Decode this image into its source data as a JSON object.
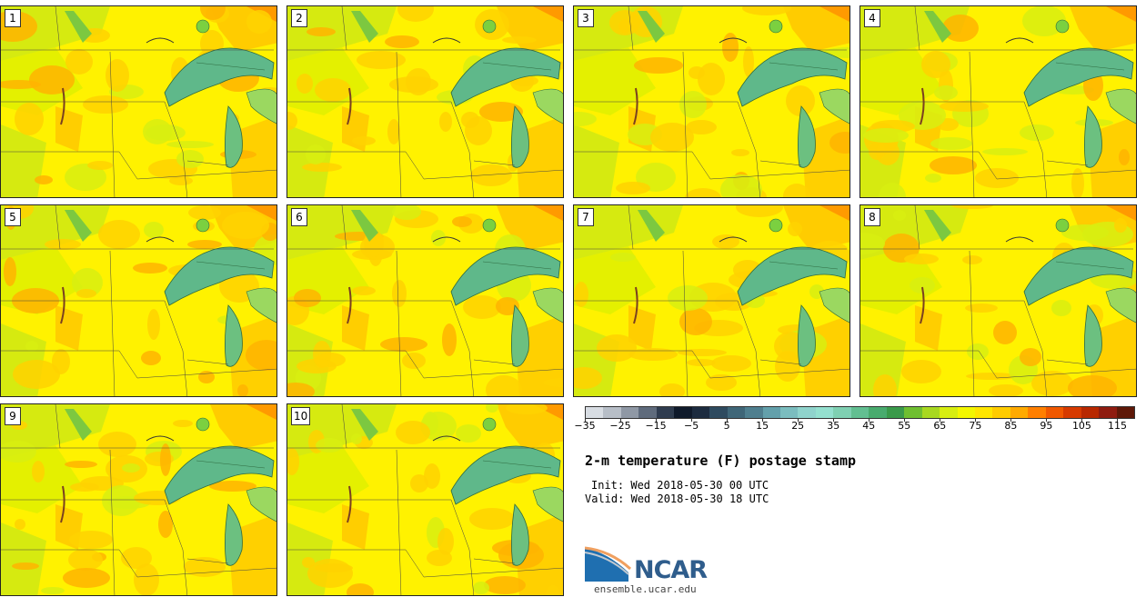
{
  "panels": [
    {
      "label": "1"
    },
    {
      "label": "2"
    },
    {
      "label": "3"
    },
    {
      "label": "4"
    },
    {
      "label": "5"
    },
    {
      "label": "6"
    },
    {
      "label": "7"
    },
    {
      "label": "8"
    },
    {
      "label": "9"
    },
    {
      "label": "10"
    }
  ],
  "colorbar": {
    "colors": [
      "#d8dde3",
      "#b7bec7",
      "#8f98a5",
      "#5f6b7c",
      "#2f3c4f",
      "#0f1a2b",
      "#1c2b3f",
      "#2e4a5f",
      "#3f6678",
      "#4f7f8f",
      "#63a0ab",
      "#7bbdbf",
      "#8fd3cc",
      "#94e0cf",
      "#7fd0b2",
      "#62bf91",
      "#49ab6e",
      "#3a9a4a",
      "#6fbf30",
      "#a8d820",
      "#d7ee10",
      "#f3f700",
      "#ffe600",
      "#ffcc00",
      "#ffaa00",
      "#ff7f00",
      "#f05800",
      "#d63a00",
      "#b82800",
      "#8f1c10",
      "#5e1808"
    ],
    "ticks": [
      "−35",
      "−25",
      "−15",
      "−5",
      "5",
      "15",
      "25",
      "35",
      "45",
      "55",
      "65",
      "75",
      "85",
      "95",
      "105",
      "115"
    ]
  },
  "title": "2-m temperature (F) postage stamp",
  "init": "Init: Wed 2018-05-30 00 UTC",
  "valid": "Valid: Wed 2018-05-30 18 UTC",
  "logo_text": "NCAR",
  "site": "ensemble.ucar.edu"
}
